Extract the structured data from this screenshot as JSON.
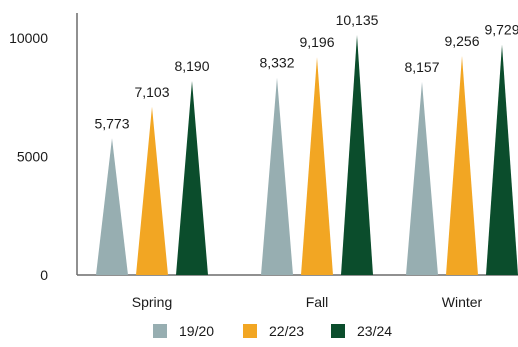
{
  "chart_data": {
    "type": "bar",
    "mark_shape": "triangle",
    "categories": [
      "Spring",
      "Fall",
      "Winter"
    ],
    "series": [
      {
        "name": "19/20",
        "values": [
          5773,
          8332,
          8157
        ],
        "labels": [
          "5,773",
          "8,332",
          "8,157"
        ],
        "color": "#97aeb1"
      },
      {
        "name": "22/23",
        "values": [
          7103,
          9196,
          9256
        ],
        "labels": [
          "7,103",
          "9,196",
          "9,256"
        ],
        "color": "#f2a623"
      },
      {
        "name": "23/24",
        "values": [
          8190,
          10135,
          9729
        ],
        "labels": [
          "8,190",
          "10,135",
          "9,729"
        ],
        "color": "#0b4d2c"
      }
    ],
    "y_ticks": [
      {
        "value": 0,
        "label": "0"
      },
      {
        "value": 5000,
        "label": "5000"
      },
      {
        "value": 10000,
        "label": "10000"
      }
    ],
    "ylim": [
      0,
      10135
    ],
    "grid": false,
    "legend_position": "bottom",
    "title": "",
    "xlabel": "",
    "ylabel": ""
  }
}
